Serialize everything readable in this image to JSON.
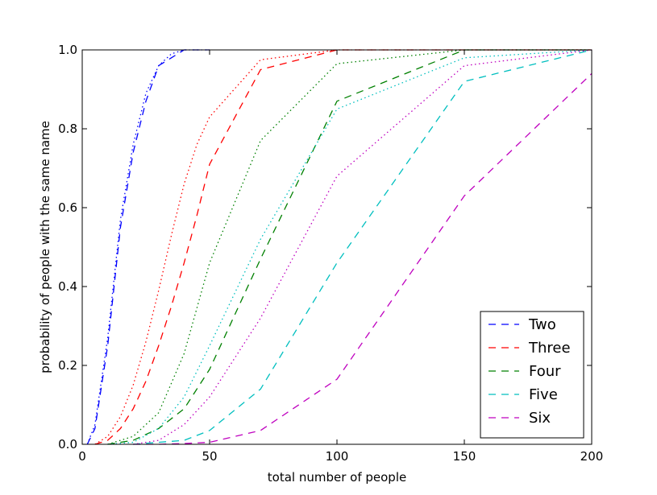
{
  "chart_data": {
    "type": "line",
    "title": "",
    "xlabel": "total number of people",
    "ylabel": "probability of people with the same name",
    "xlim": [
      0,
      200
    ],
    "ylim": [
      0,
      1.0
    ],
    "xticks": [
      0,
      50,
      100,
      150,
      200
    ],
    "yticks": [
      0.0,
      0.2,
      0.4,
      0.6,
      0.8,
      1.0
    ],
    "xtick_labels": [
      "0",
      "50",
      "100",
      "150",
      "200"
    ],
    "ytick_labels": [
      "0.0",
      "0.2",
      "0.4",
      "0.6",
      "0.8",
      "1.0"
    ],
    "grid": false,
    "legend_position": "lower-right",
    "series": [
      {
        "name": "Two",
        "color": "#0000ff",
        "style": "dashed",
        "x": [
          2,
          5,
          10,
          15,
          20,
          25,
          30,
          35,
          40,
          45,
          50
        ],
        "y": [
          0.0,
          0.04,
          0.25,
          0.55,
          0.74,
          0.87,
          0.96,
          0.98,
          1.0,
          1.0,
          1.0
        ]
      },
      {
        "name": "",
        "color": "#0000ff",
        "style": "dotted",
        "x": [
          2,
          5,
          10,
          15,
          20,
          25,
          30,
          35,
          40,
          45,
          50
        ],
        "y": [
          0.0,
          0.05,
          0.27,
          0.57,
          0.76,
          0.89,
          0.96,
          0.99,
          1.0,
          1.0,
          1.0
        ]
      },
      {
        "name": "Three",
        "color": "#ff0000",
        "style": "dashed",
        "x": [
          5,
          10,
          15,
          20,
          25,
          30,
          35,
          40,
          45,
          50,
          70,
          100,
          150,
          200
        ],
        "y": [
          0.0,
          0.01,
          0.04,
          0.09,
          0.16,
          0.25,
          0.35,
          0.46,
          0.58,
          0.71,
          0.95,
          1.0,
          1.0,
          1.0
        ]
      },
      {
        "name": "",
        "color": "#ff0000",
        "style": "dotted",
        "x": [
          5,
          10,
          15,
          20,
          25,
          30,
          35,
          40,
          45,
          50,
          70,
          100,
          150,
          200
        ],
        "y": [
          0.0,
          0.02,
          0.07,
          0.15,
          0.26,
          0.39,
          0.53,
          0.66,
          0.76,
          0.83,
          0.975,
          1.0,
          1.0,
          1.0
        ]
      },
      {
        "name": "Four",
        "color": "#008000",
        "style": "dashed",
        "x": [
          10,
          20,
          30,
          40,
          50,
          70,
          100,
          150,
          200
        ],
        "y": [
          0.0,
          0.01,
          0.04,
          0.09,
          0.19,
          0.47,
          0.87,
          1.0,
          1.0
        ]
      },
      {
        "name": "",
        "color": "#008000",
        "style": "dotted",
        "x": [
          10,
          20,
          30,
          40,
          50,
          70,
          100,
          150,
          200
        ],
        "y": [
          0.0,
          0.02,
          0.08,
          0.23,
          0.46,
          0.77,
          0.965,
          1.0,
          1.0
        ]
      },
      {
        "name": "Five",
        "color": "#00bfbf",
        "style": "dashed",
        "x": [
          20,
          30,
          40,
          50,
          70,
          100,
          150,
          200
        ],
        "y": [
          0.0,
          0.005,
          0.01,
          0.035,
          0.14,
          0.46,
          0.92,
          1.0
        ]
      },
      {
        "name": "",
        "color": "#00bfbf",
        "style": "dotted",
        "x": [
          10,
          20,
          30,
          40,
          50,
          70,
          100,
          150,
          200
        ],
        "y": [
          0.0,
          0.005,
          0.04,
          0.12,
          0.25,
          0.52,
          0.85,
          0.98,
          1.0
        ]
      },
      {
        "name": "Six",
        "color": "#bf00bf",
        "style": "dashed",
        "x": [
          20,
          30,
          40,
          50,
          70,
          100,
          150,
          200
        ],
        "y": [
          0.0,
          0.0,
          0.002,
          0.005,
          0.035,
          0.165,
          0.63,
          0.94
        ]
      },
      {
        "name": "",
        "color": "#bf00bf",
        "style": "dotted",
        "x": [
          20,
          30,
          40,
          50,
          70,
          100,
          150,
          200
        ],
        "y": [
          0.0,
          0.01,
          0.05,
          0.12,
          0.32,
          0.68,
          0.96,
          1.0
        ]
      }
    ]
  }
}
